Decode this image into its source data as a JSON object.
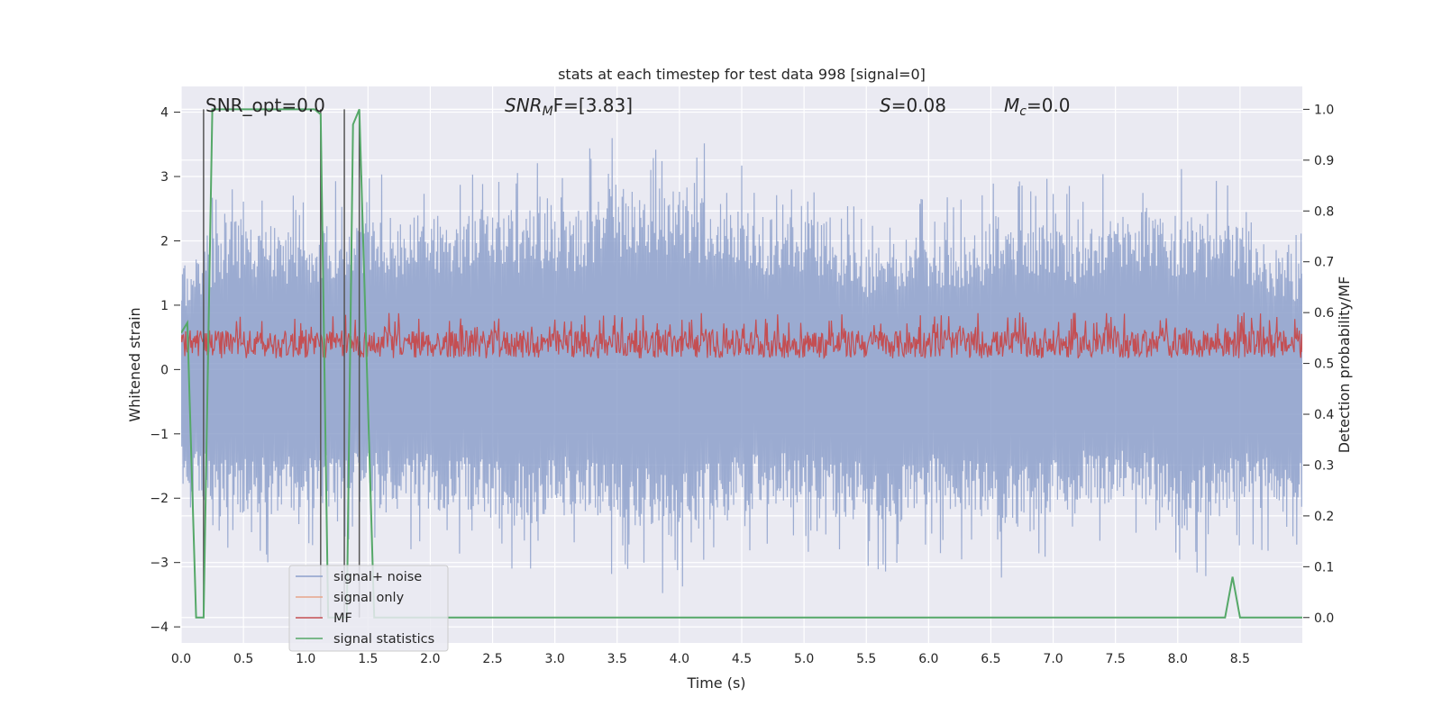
{
  "chart_data": {
    "type": "line",
    "title": "stats at each timestep for test data 998 [signal=0]",
    "xlabel": "Time (s)",
    "ylabel_left": "Whitened strain",
    "ylabel_right": "Detection probability/MF",
    "xlim": [
      0.0,
      9.0
    ],
    "ylim_left": [
      -4.25,
      4.4
    ],
    "ylim_right": [
      -0.05,
      1.045
    ],
    "xticks": [
      "0.0",
      "0.5",
      "1.0",
      "1.5",
      "2.0",
      "2.5",
      "3.0",
      "3.5",
      "4.0",
      "4.5",
      "5.0",
      "5.5",
      "6.0",
      "6.5",
      "7.0",
      "7.5",
      "8.0",
      "8.5"
    ],
    "xtick_values": [
      0.0,
      0.5,
      1.0,
      1.5,
      2.0,
      2.5,
      3.0,
      3.5,
      4.0,
      4.5,
      5.0,
      5.5,
      6.0,
      6.5,
      7.0,
      7.5,
      8.0,
      8.5
    ],
    "yticks_left": [
      "4",
      "3",
      "2",
      "1",
      "0",
      "−1",
      "−2",
      "−3",
      "−4"
    ],
    "ytick_values_left": [
      4,
      3,
      2,
      1,
      0,
      -1,
      -2,
      -3,
      -4
    ],
    "yticks_right": [
      "1.0",
      "0.9",
      "0.8",
      "0.7",
      "0.6",
      "0.5",
      "0.4",
      "0.3",
      "0.2",
      "0.1",
      "0.0"
    ],
    "ytick_values_right": [
      1.0,
      0.9,
      0.8,
      0.7,
      0.6,
      0.5,
      0.4,
      0.3,
      0.2,
      0.1,
      0.0
    ],
    "grid": true,
    "legend_placement": "lower-left",
    "annotations": {
      "snr_opt": "SNR_opt=0.0",
      "snr_mf_italic": "SNR",
      "snr_mf_sub": "M",
      "snr_mf_rest": "F=[3.83]",
      "s_italic": "S",
      "s_rest": "=0.08",
      "mc_italic": "M",
      "mc_sub": "c",
      "mc_rest": "=0.0"
    },
    "series": [
      {
        "name": "signal+ noise",
        "color": "#8da0cb",
        "axis": "left",
        "envelope_positive": [
          [
            0.0,
            2.1
          ],
          [
            0.15,
            2.5
          ],
          [
            0.4,
            3.2
          ],
          [
            0.9,
            2.9
          ],
          [
            1.4,
            3.1
          ],
          [
            1.9,
            3.2
          ],
          [
            2.4,
            3.2
          ],
          [
            2.8,
            3.2
          ],
          [
            3.2,
            3.4
          ],
          [
            3.6,
            4.0
          ],
          [
            4.3,
            3.5
          ],
          [
            4.7,
            3.2
          ],
          [
            5.0,
            3.3
          ],
          [
            5.5,
            2.5
          ],
          [
            6.0,
            2.8
          ],
          [
            6.3,
            2.7
          ],
          [
            6.8,
            3.3
          ],
          [
            7.2,
            2.9
          ],
          [
            7.7,
            3.3
          ],
          [
            8.0,
            3.2
          ],
          [
            8.5,
            3.0
          ],
          [
            9.0,
            2.1
          ]
        ],
        "envelope_negative": [
          [
            0.0,
            -2.6
          ],
          [
            0.4,
            -3.0
          ],
          [
            0.8,
            -3.0
          ],
          [
            1.4,
            -2.8
          ],
          [
            1.8,
            -2.8
          ],
          [
            2.2,
            -3.0
          ],
          [
            2.5,
            -3.0
          ],
          [
            2.8,
            -3.2
          ],
          [
            3.1,
            -3.0
          ],
          [
            3.6,
            -3.3
          ],
          [
            3.9,
            -3.5
          ],
          [
            4.3,
            -3.1
          ],
          [
            4.8,
            -2.8
          ],
          [
            5.3,
            -3.1
          ],
          [
            5.7,
            -3.2
          ],
          [
            6.0,
            -2.9
          ],
          [
            6.7,
            -3.3
          ],
          [
            7.1,
            -2.8
          ],
          [
            7.7,
            -2.8
          ],
          [
            8.1,
            -3.4
          ],
          [
            8.5,
            -2.8
          ],
          [
            9.0,
            -3.1
          ]
        ]
      },
      {
        "name": "signal only",
        "color": "#e8a58a",
        "axis": "left",
        "values": []
      },
      {
        "name": "MF",
        "color": "#c44e52",
        "axis": "right",
        "baseline": 0.5,
        "range": [
          0.5,
          0.6
        ]
      },
      {
        "name": "signal statistics",
        "color": "#55a868",
        "axis": "right",
        "points": [
          [
            0.0,
            0.56
          ],
          [
            0.05,
            0.58
          ],
          [
            0.12,
            0.0
          ],
          [
            0.18,
            0.0
          ],
          [
            0.25,
            1.0
          ],
          [
            1.07,
            1.0
          ],
          [
            1.12,
            0.99
          ],
          [
            1.18,
            0.0
          ],
          [
            1.33,
            0.0
          ],
          [
            1.38,
            0.97
          ],
          [
            1.43,
            1.0
          ],
          [
            1.55,
            0.0
          ],
          [
            8.38,
            0.0
          ],
          [
            8.44,
            0.08
          ],
          [
            8.5,
            0.0
          ],
          [
            8.7,
            0.0
          ],
          [
            9.0,
            0.0
          ]
        ]
      }
    ],
    "vertical_markers": [
      0.18,
      1.12,
      1.31,
      1.43
    ]
  }
}
